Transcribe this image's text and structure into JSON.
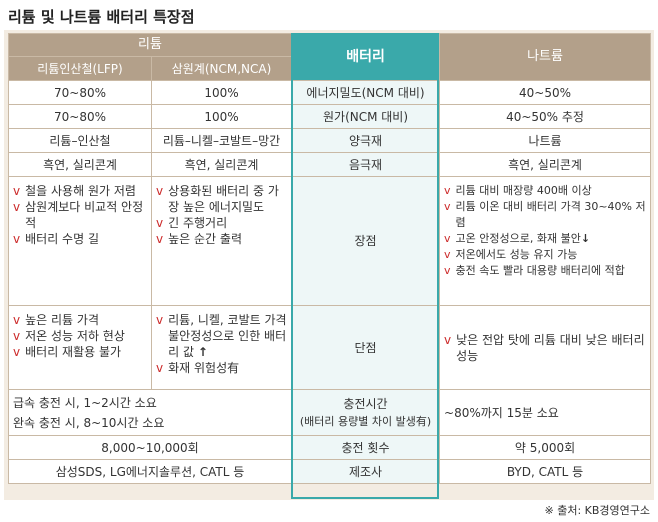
{
  "title": "리튬 및 나트륨 배터리 특장점",
  "header": {
    "lithium": "리튬",
    "battery": "배터리",
    "sodium": "나트륨",
    "lfp": "리튬인산철(LFP)",
    "ncm": "삼원계(NCM,NCA)"
  },
  "rows": {
    "energy": {
      "lfp": "70~80%",
      "ncm": "100%",
      "label": "에너지밀도(NCM 대비)",
      "sodium": "40~50%"
    },
    "cost": {
      "lfp": "70~80%",
      "ncm": "100%",
      "label": "원가(NCM 대비)",
      "sodium": "40~50% 추정"
    },
    "cathode": {
      "lfp": "리튬–인산철",
      "ncm": "리튬–니켈–코발트–망간",
      "label": "양극재",
      "sodium": "나트륨"
    },
    "anode": {
      "lfp": "흑연, 실리콘계",
      "ncm": "흑연, 실리콘계",
      "label": "음극재",
      "sodium": "흑연, 실리콘계"
    },
    "pros": {
      "label": "장점",
      "lfp": [
        "철을 사용해 원가 저렴",
        "삼원계보다 비교적 안정적",
        "배터리 수명 길"
      ],
      "ncm": [
        "상용화된 배터리 중 가장 높은 에너지밀도",
        "긴 주행거리",
        "높은 순간 출력"
      ],
      "sodium": [
        "리튬 대비 매장량 400배 이상",
        "리튬 이온 대비 배터리 가격 30~40% 저렴",
        "고온 안정성으로, 화재 불안",
        "저온에서도 성능 유지 가능",
        "충전 속도 빨라 대용량 배터리에 적합"
      ]
    },
    "cons": {
      "label": "단점",
      "lfp": [
        "높은 리튬 가격",
        "저온 성능 저하 현상",
        "배터리 재활용 불가"
      ],
      "ncm": [
        "리튬, 니켈, 코발트 가격 불안정성으로 인한 배터리 값",
        "화재 위험성有"
      ],
      "sodium": [
        "낮은 전압 탓에 리튬 대비 낮은 배터리 성능"
      ]
    },
    "charge": {
      "label1": "충전시간",
      "label2": "(배터리 용량별 차이 발생有)",
      "fast": "급속 충전 시, 1~2시간 소요",
      "slow": "완속 충전 시, 8~10시간 소요",
      "sodium": "~80%까지 15분 소요"
    },
    "cycles": {
      "lithium": "8,000~10,000회",
      "label": "충전 횟수",
      "sodium": "약 5,000회"
    },
    "maker": {
      "lithium": "삼성SDS, LG에너지솔루션, CATL 등",
      "label": "제조사",
      "sodium": "BYD, CATL 등"
    }
  },
  "source": "※ 출처: KB경영연구소"
}
